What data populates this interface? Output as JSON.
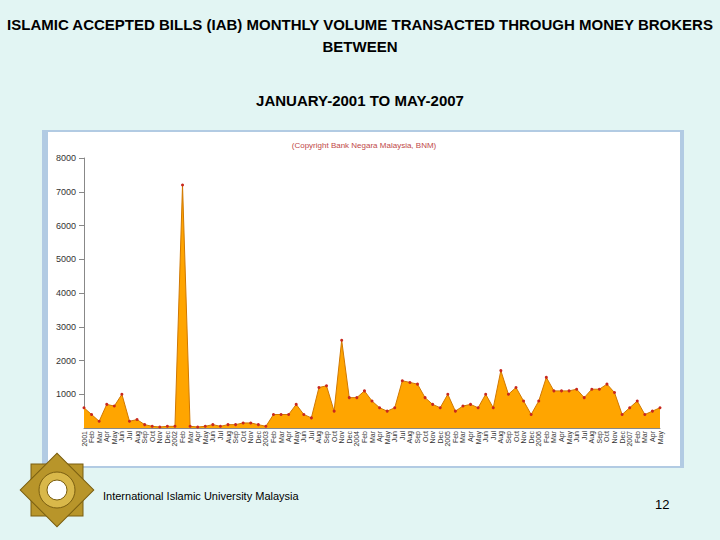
{
  "slide": {
    "title_lines": [
      "ISLAMIC ACCEPTED BILLS (IAB) MONTHLY VOLUME TRANSACTED THROUGH MONEY BROKERS BETWEEN",
      "JANUARY-2001 TO MAY-2007"
    ],
    "footer": "International Islamic University Malaysia",
    "page_number": 12
  },
  "chart_data": {
    "type": "area",
    "subtitle": "(Copyright Bank Negara Malaysia, BNM)",
    "categories": [
      "2001",
      "Feb",
      "Mar",
      "Apr",
      "May",
      "Jun",
      "Jul",
      "Aug",
      "Sep",
      "Oct",
      "Nov",
      "Dec",
      "2002",
      "Feb",
      "Mar",
      "Apr",
      "May",
      "Jun",
      "Jul",
      "Aug",
      "Sep",
      "Oct",
      "Nov",
      "Dec",
      "2003",
      "Feb",
      "Mar",
      "Apr",
      "May",
      "Jun",
      "Jul",
      "Aug",
      "Sep",
      "Oct",
      "Nov",
      "Dec",
      "2004",
      "Feb",
      "Mar",
      "Apr",
      "May",
      "Jun",
      "Jul",
      "Aug",
      "Sep",
      "Oct",
      "Nov",
      "Dec",
      "2005",
      "Feb",
      "Mar",
      "Apr",
      "May",
      "Jun",
      "Jul",
      "Aug",
      "Sep",
      "Oct",
      "Nov",
      "Dec",
      "2006",
      "Feb",
      "Mar",
      "Apr",
      "May",
      "Jun",
      "Jul",
      "Aug",
      "Sep",
      "Oct",
      "Nov",
      "Dec",
      "2007",
      "Feb",
      "Mar",
      "Apr",
      "May"
    ],
    "values": [
      600,
      400,
      200,
      700,
      650,
      1000,
      200,
      250,
      100,
      50,
      30,
      50,
      50,
      7200,
      50,
      30,
      50,
      100,
      50,
      100,
      100,
      150,
      150,
      100,
      50,
      400,
      400,
      400,
      700,
      400,
      300,
      1200,
      1250,
      500,
      2600,
      900,
      900,
      1100,
      800,
      600,
      500,
      600,
      1400,
      1350,
      1300,
      900,
      700,
      600,
      1000,
      500,
      650,
      700,
      600,
      1000,
      600,
      1700,
      1000,
      1200,
      800,
      400,
      800,
      1500,
      1100,
      1100,
      1100,
      1150,
      900,
      1150,
      1150,
      1300,
      1050,
      400,
      600,
      800,
      400,
      500,
      600
    ],
    "color": "#ffa500",
    "marker": "circle",
    "ylim": [
      0,
      8000
    ],
    "yticks": [
      1000,
      2000,
      3000,
      4000,
      5000,
      6000,
      7000,
      8000
    ],
    "grid": false
  }
}
